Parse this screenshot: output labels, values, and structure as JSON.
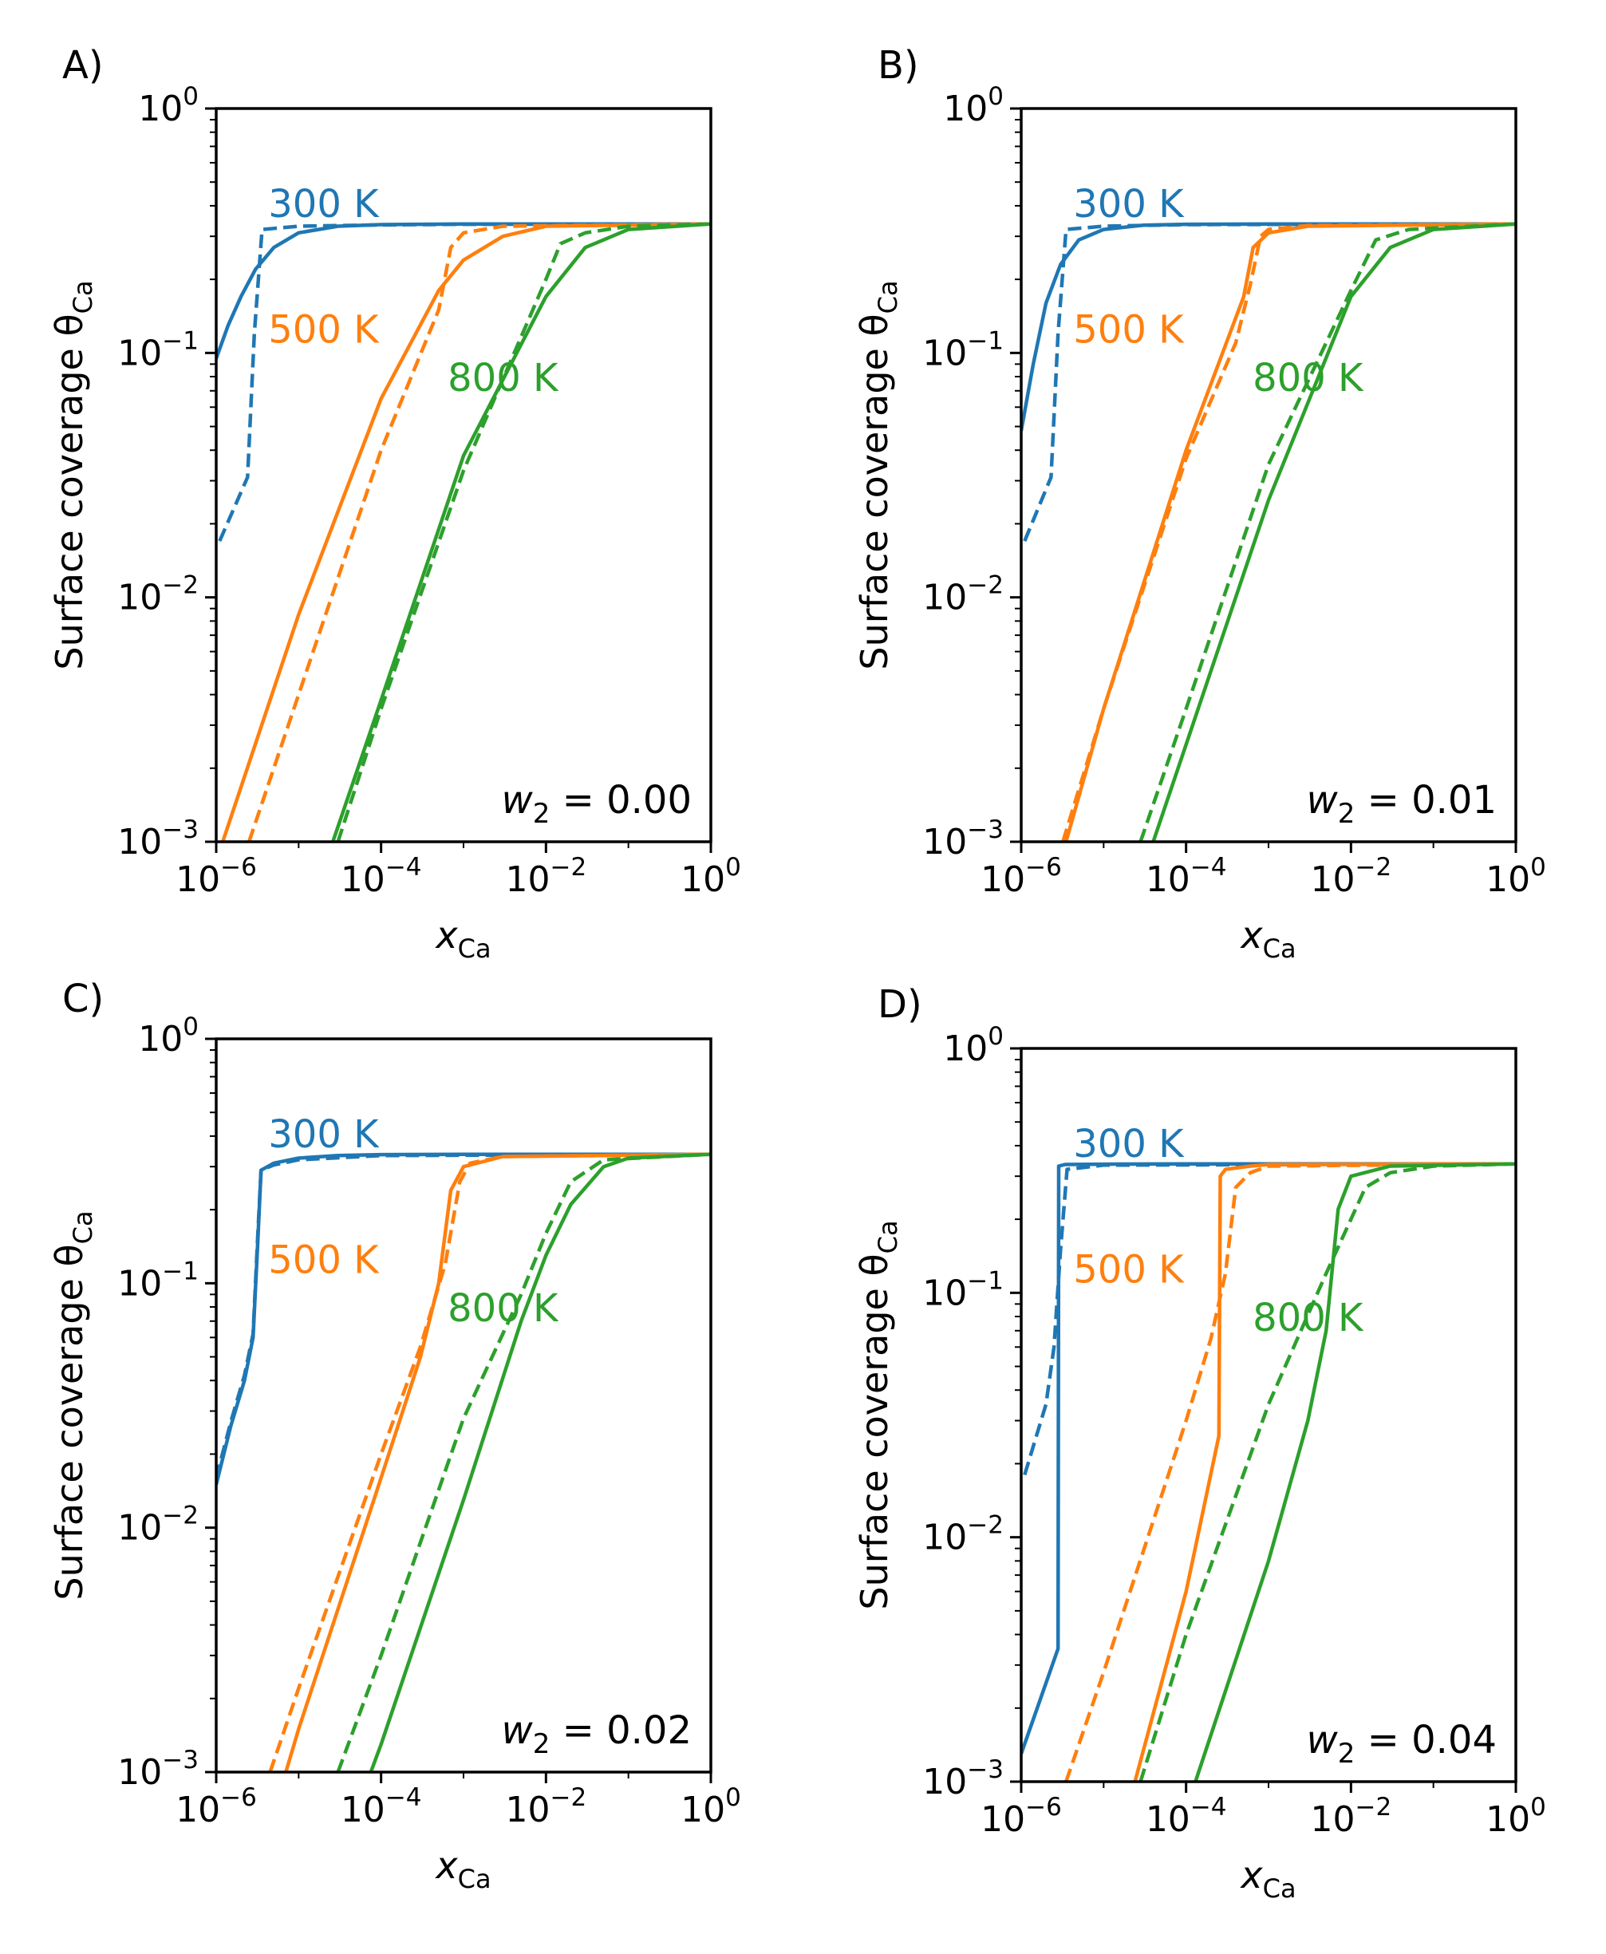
{
  "figure": {
    "colors": {
      "300": "#1f77b4",
      "500": "#ff7f0e",
      "800": "#2ca02c",
      "axis": "#000000"
    }
  },
  "chart_data": [
    {
      "type": "line",
      "panel_label": "A)",
      "xlabel": "x",
      "xlabel_sub": "Ca",
      "ylabel": "Surface coverage θ",
      "ylabel_sub": "Ca",
      "xscale": "log",
      "yscale": "log",
      "xlim": [
        1e-06,
        1
      ],
      "ylim": [
        0.001,
        1
      ],
      "xticks": [
        {
          "base": "10",
          "exp": "−6"
        },
        {
          "base": "10",
          "exp": "−4"
        },
        {
          "base": "10",
          "exp": "−2"
        },
        {
          "base": "10",
          "exp": "0"
        }
      ],
      "yticks": [
        {
          "base": "10",
          "exp": "−3"
        },
        {
          "base": "10",
          "exp": "−2"
        },
        {
          "base": "10",
          "exp": "−1"
        },
        {
          "base": "10",
          "exp": "0"
        }
      ],
      "annotation": {
        "var": "w",
        "sub": "2",
        "text": " = 0.00"
      },
      "series": [
        {
          "name": "300 K",
          "temp": "300",
          "style": "solid",
          "x": [
            1e-06,
            1.4e-06,
            2e-06,
            3e-06,
            5e-06,
            1e-05,
            3e-05,
            0.0001,
            0.001,
            0.01,
            1
          ],
          "y": [
            0.095,
            0.13,
            0.17,
            0.22,
            0.27,
            0.31,
            0.33,
            0.335,
            0.337,
            0.337,
            0.337
          ]
        },
        {
          "name": "300 K dashed",
          "temp": "300",
          "style": "dashed",
          "x": [
            1.1e-06,
            2.4e-06,
            2.9e-06,
            3.6e-06,
            1e-05,
            0.0001,
            0.001,
            1
          ],
          "y": [
            0.017,
            0.031,
            0.12,
            0.32,
            0.33,
            0.334,
            0.336,
            0.337
          ]
        },
        {
          "name": "500 K",
          "temp": "500",
          "style": "solid",
          "x": [
            1.2e-06,
            1e-05,
            0.0001,
            0.0005,
            0.001,
            0.003,
            0.01,
            1
          ],
          "y": [
            0.001,
            0.0085,
            0.065,
            0.18,
            0.24,
            0.3,
            0.33,
            0.337
          ]
        },
        {
          "name": "500 K dashed",
          "temp": "500",
          "style": "dashed",
          "x": [
            2.5e-06,
            1e-05,
            0.0001,
            0.0005,
            0.0007,
            0.001,
            0.003,
            1
          ],
          "y": [
            0.001,
            0.004,
            0.04,
            0.15,
            0.27,
            0.31,
            0.33,
            0.337
          ]
        },
        {
          "name": "800 K",
          "temp": "800",
          "style": "solid",
          "x": [
            2.6e-05,
            0.0001,
            0.001,
            0.01,
            0.03,
            0.1,
            1
          ],
          "y": [
            0.001,
            0.0038,
            0.038,
            0.17,
            0.27,
            0.32,
            0.337
          ]
        },
        {
          "name": "800 K dashed",
          "temp": "800",
          "style": "dashed",
          "x": [
            3e-05,
            0.0001,
            0.001,
            0.01,
            0.015,
            0.03,
            0.1,
            1
          ],
          "y": [
            0.001,
            0.0035,
            0.033,
            0.2,
            0.28,
            0.31,
            0.33,
            0.337
          ]
        }
      ],
      "labels": [
        {
          "text": "300 K",
          "temp": "300",
          "x": 2e-05,
          "y": 0.36
        },
        {
          "text": "500 K",
          "temp": "500",
          "x": 2e-05,
          "y": 0.11
        },
        {
          "text": "800 K",
          "temp": "800",
          "x": 0.003,
          "y": 0.07
        }
      ]
    },
    {
      "type": "line",
      "panel_label": "B)",
      "xlabel": "x",
      "xlabel_sub": "Ca",
      "ylabel": "Surface coverage θ",
      "ylabel_sub": "Ca",
      "xscale": "log",
      "yscale": "log",
      "xlim": [
        1e-06,
        1
      ],
      "ylim": [
        0.001,
        1
      ],
      "xticks": [
        {
          "base": "10",
          "exp": "−6"
        },
        {
          "base": "10",
          "exp": "−4"
        },
        {
          "base": "10",
          "exp": "−2"
        },
        {
          "base": "10",
          "exp": "0"
        }
      ],
      "yticks": [
        {
          "base": "10",
          "exp": "−3"
        },
        {
          "base": "10",
          "exp": "−2"
        },
        {
          "base": "10",
          "exp": "−1"
        },
        {
          "base": "10",
          "exp": "0"
        }
      ],
      "annotation": {
        "var": "w",
        "sub": "2",
        "text": " = 0.01"
      },
      "series": [
        {
          "name": "300 K",
          "temp": "300",
          "style": "solid",
          "x": [
            1e-06,
            1.4e-06,
            2e-06,
            3e-06,
            5e-06,
            1e-05,
            3e-05,
            0.0001,
            0.001,
            1
          ],
          "y": [
            0.048,
            0.09,
            0.16,
            0.23,
            0.29,
            0.32,
            0.333,
            0.336,
            0.337,
            0.337
          ]
        },
        {
          "name": "300 K dashed",
          "temp": "300",
          "style": "dashed",
          "x": [
            1.1e-06,
            2.3e-06,
            2.8e-06,
            3.5e-06,
            1e-05,
            0.0001,
            1
          ],
          "y": [
            0.017,
            0.031,
            0.12,
            0.32,
            0.33,
            0.335,
            0.337
          ]
        },
        {
          "name": "500 K",
          "temp": "500",
          "style": "solid",
          "x": [
            3.5e-06,
            1e-05,
            0.0001,
            0.0005,
            0.00065,
            0.001,
            0.003,
            1
          ],
          "y": [
            0.001,
            0.0035,
            0.04,
            0.17,
            0.27,
            0.31,
            0.33,
            0.337
          ]
        },
        {
          "name": "500 K dashed",
          "temp": "500",
          "style": "dashed",
          "x": [
            3.2e-06,
            1e-05,
            0.0001,
            0.0004,
            0.0006,
            0.0008,
            0.001,
            0.003,
            1
          ],
          "y": [
            0.001,
            0.0035,
            0.037,
            0.11,
            0.19,
            0.3,
            0.32,
            0.332,
            0.337
          ]
        },
        {
          "name": "800 K",
          "temp": "800",
          "style": "solid",
          "x": [
            4e-05,
            0.0001,
            0.001,
            0.01,
            0.03,
            0.1,
            1
          ],
          "y": [
            0.001,
            0.0025,
            0.025,
            0.17,
            0.27,
            0.32,
            0.337
          ]
        },
        {
          "name": "800 K dashed",
          "temp": "800",
          "style": "dashed",
          "x": [
            2.8e-05,
            0.0001,
            0.001,
            0.01,
            0.02,
            0.05,
            1
          ],
          "y": [
            0.001,
            0.0035,
            0.035,
            0.18,
            0.29,
            0.32,
            0.337
          ]
        }
      ],
      "labels": [
        {
          "text": "300 K",
          "temp": "300",
          "x": 2e-05,
          "y": 0.36
        },
        {
          "text": "500 K",
          "temp": "500",
          "x": 2e-05,
          "y": 0.11
        },
        {
          "text": "800 K",
          "temp": "800",
          "x": 0.003,
          "y": 0.07
        }
      ]
    },
    {
      "type": "line",
      "panel_label": "C)",
      "xlabel": "x",
      "xlabel_sub": "Ca",
      "ylabel": "Surface coverage θ",
      "ylabel_sub": "Ca",
      "xscale": "log",
      "yscale": "log",
      "xlim": [
        1e-06,
        1
      ],
      "ylim": [
        0.001,
        1
      ],
      "xticks": [
        {
          "base": "10",
          "exp": "−6"
        },
        {
          "base": "10",
          "exp": "−4"
        },
        {
          "base": "10",
          "exp": "−2"
        },
        {
          "base": "10",
          "exp": "0"
        }
      ],
      "yticks": [
        {
          "base": "10",
          "exp": "−3"
        },
        {
          "base": "10",
          "exp": "−2"
        },
        {
          "base": "10",
          "exp": "−1"
        },
        {
          "base": "10",
          "exp": "0"
        }
      ],
      "annotation": {
        "var": "w",
        "sub": "2",
        "text": " = 0.02"
      },
      "series": [
        {
          "name": "300 K",
          "temp": "300",
          "style": "solid",
          "x": [
            1e-06,
            1.5e-06,
            2.2e-06,
            2.8e-06,
            3.2e-06,
            3.5e-06,
            5e-06,
            1e-05,
            3e-05,
            0.0001,
            0.001,
            1
          ],
          "y": [
            0.015,
            0.026,
            0.04,
            0.06,
            0.15,
            0.29,
            0.31,
            0.325,
            0.333,
            0.336,
            0.337,
            0.337
          ]
        },
        {
          "name": "300 K dashed",
          "temp": "300",
          "style": "dashed",
          "x": [
            1e-06,
            1.5e-06,
            2.2e-06,
            2.8e-06,
            3.2e-06,
            3.5e-06,
            5e-06,
            1e-05,
            0.0001,
            1
          ],
          "y": [
            0.016,
            0.027,
            0.042,
            0.062,
            0.16,
            0.29,
            0.305,
            0.32,
            0.333,
            0.337
          ]
        },
        {
          "name": "500 K",
          "temp": "500",
          "style": "solid",
          "x": [
            7e-06,
            1e-05,
            0.0001,
            0.0003,
            0.0005,
            0.0007,
            0.001,
            0.003,
            1
          ],
          "y": [
            0.001,
            0.0015,
            0.016,
            0.05,
            0.1,
            0.24,
            0.3,
            0.33,
            0.337
          ]
        },
        {
          "name": "500 K dashed",
          "temp": "500",
          "style": "dashed",
          "x": [
            4.5e-06,
            1e-05,
            0.0001,
            0.0003,
            0.0006,
            0.0009,
            0.0012,
            0.003,
            1
          ],
          "y": [
            0.001,
            0.0022,
            0.02,
            0.055,
            0.12,
            0.26,
            0.31,
            0.33,
            0.337
          ]
        },
        {
          "name": "800 K",
          "temp": "800",
          "style": "solid",
          "x": [
            7.5e-05,
            0.0001,
            0.001,
            0.005,
            0.01,
            0.02,
            0.05,
            0.1,
            1
          ],
          "y": [
            0.001,
            0.0013,
            0.013,
            0.07,
            0.13,
            0.21,
            0.3,
            0.325,
            0.337
          ]
        },
        {
          "name": "800 K dashed",
          "temp": "800",
          "style": "dashed",
          "x": [
            3e-05,
            0.0001,
            0.001,
            0.005,
            0.01,
            0.02,
            0.05,
            1
          ],
          "y": [
            0.001,
            0.003,
            0.028,
            0.09,
            0.16,
            0.26,
            0.32,
            0.337
          ]
        }
      ],
      "labels": [
        {
          "text": "300 K",
          "temp": "300",
          "x": 2e-05,
          "y": 0.36
        },
        {
          "text": "500 K",
          "temp": "500",
          "x": 2e-05,
          "y": 0.11
        },
        {
          "text": "800 K",
          "temp": "800",
          "x": 0.003,
          "y": 0.07
        }
      ]
    },
    {
      "type": "line",
      "panel_label": "D)",
      "xlabel": "x",
      "xlabel_sub": "Ca",
      "ylabel": "Surface coverage θ",
      "ylabel_sub": "Ca",
      "xscale": "log",
      "yscale": "log",
      "xlim": [
        1e-06,
        1
      ],
      "ylim": [
        0.001,
        1
      ],
      "xticks": [
        {
          "base": "10",
          "exp": "−6"
        },
        {
          "base": "10",
          "exp": "−4"
        },
        {
          "base": "10",
          "exp": "−2"
        },
        {
          "base": "10",
          "exp": "0"
        }
      ],
      "yticks": [
        {
          "base": "10",
          "exp": "−3"
        },
        {
          "base": "10",
          "exp": "−2"
        },
        {
          "base": "10",
          "exp": "−1"
        },
        {
          "base": "10",
          "exp": "0"
        }
      ],
      "annotation": {
        "var": "w",
        "sub": "2",
        "text": " = 0.04"
      },
      "series": [
        {
          "name": "300 K",
          "temp": "300",
          "style": "solid",
          "x": [
            1e-06,
            2.8e-06,
            2.85e-06,
            3.4e-06,
            1e-05,
            0.0001,
            1
          ],
          "y": [
            0.0013,
            0.0035,
            0.33,
            0.335,
            0.336,
            0.337,
            0.337
          ]
        },
        {
          "name": "300 K dashed",
          "temp": "300",
          "style": "dashed",
          "x": [
            1.1e-06,
            2e-06,
            2.5e-06,
            3e-06,
            3.6e-06,
            1e-05,
            1
          ],
          "y": [
            0.018,
            0.035,
            0.06,
            0.15,
            0.32,
            0.333,
            0.337
          ]
        },
        {
          "name": "500 K",
          "temp": "500",
          "style": "solid",
          "x": [
            2.4e-05,
            0.0001,
            0.00025,
            0.00026,
            0.0003,
            0.0006,
            0.001,
            1
          ],
          "y": [
            0.001,
            0.006,
            0.026,
            0.3,
            0.32,
            0.33,
            0.335,
            0.337
          ]
        },
        {
          "name": "500 K dashed",
          "temp": "500",
          "style": "dashed",
          "x": [
            3.5e-06,
            1e-05,
            0.0001,
            0.0002,
            0.0003,
            0.0004,
            0.0006,
            0.001,
            1
          ],
          "y": [
            0.001,
            0.0028,
            0.03,
            0.065,
            0.12,
            0.27,
            0.31,
            0.33,
            0.337
          ]
        },
        {
          "name": "800 K",
          "temp": "800",
          "style": "solid",
          "x": [
            0.00013,
            0.001,
            0.003,
            0.005,
            0.006,
            0.007,
            0.01,
            0.03,
            1
          ],
          "y": [
            0.001,
            0.008,
            0.03,
            0.07,
            0.13,
            0.22,
            0.3,
            0.33,
            0.337
          ]
        },
        {
          "name": "800 K dashed",
          "temp": "800",
          "style": "dashed",
          "x": [
            2.8e-05,
            0.0001,
            0.001,
            0.005,
            0.01,
            0.015,
            0.03,
            0.1,
            1
          ],
          "y": [
            0.001,
            0.004,
            0.035,
            0.12,
            0.2,
            0.27,
            0.31,
            0.33,
            0.337
          ]
        }
      ],
      "labels": [
        {
          "text": "300 K",
          "temp": "300",
          "x": 2e-05,
          "y": 0.36
        },
        {
          "text": "500 K",
          "temp": "500",
          "x": 2e-05,
          "y": 0.11
        },
        {
          "text": "800 K",
          "temp": "800",
          "x": 0.003,
          "y": 0.07
        }
      ]
    }
  ]
}
